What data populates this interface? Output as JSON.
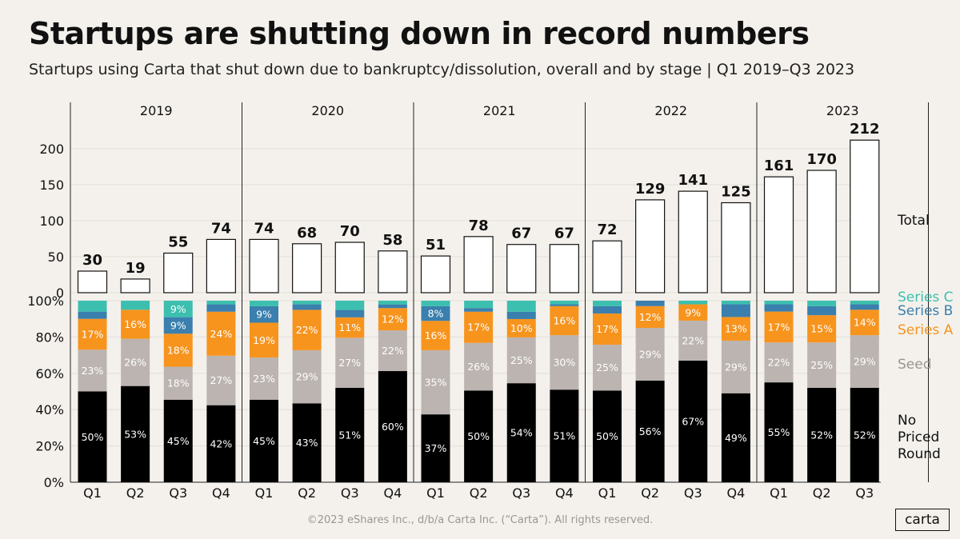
{
  "header": {
    "title": "Startups are shutting down in record numbers",
    "subtitle": "Startups using Carta that shut down due to bankruptcy/dissolution, overall and by stage | Q1 2019–Q3 2023"
  },
  "footer": {
    "copyright": "©2023 eShares Inc., d/b/a Carta Inc. (“Carta”). All rights reserved.",
    "logo": "carta"
  },
  "chart_data": [
    {
      "type": "bar",
      "panel": "total",
      "years": [
        "2019",
        "2020",
        "2021",
        "2022",
        "2023"
      ],
      "categories": [
        "Q1",
        "Q2",
        "Q3",
        "Q4",
        "Q1",
        "Q2",
        "Q3",
        "Q4",
        "Q1",
        "Q2",
        "Q3",
        "Q4",
        "Q1",
        "Q2",
        "Q3",
        "Q4",
        "Q1",
        "Q2",
        "Q3"
      ],
      "values": [
        30,
        19,
        55,
        74,
        74,
        68,
        70,
        58,
        51,
        78,
        67,
        67,
        72,
        129,
        141,
        125,
        161,
        170,
        212
      ],
      "ylim": [
        0,
        220
      ],
      "yticks": [
        "0",
        "50",
        "100",
        "150",
        "200"
      ],
      "legend_label": "Total"
    },
    {
      "type": "stacked-bar-100",
      "panel": "by-stage",
      "categories": [
        "Q1",
        "Q2",
        "Q3",
        "Q4",
        "Q1",
        "Q2",
        "Q3",
        "Q4",
        "Q1",
        "Q2",
        "Q3",
        "Q4",
        "Q1",
        "Q2",
        "Q3",
        "Q4",
        "Q1",
        "Q2",
        "Q3"
      ],
      "ylim": [
        0,
        100
      ],
      "yticks": [
        "0%",
        "20%",
        "40%",
        "60%",
        "80%",
        "100%"
      ],
      "series": [
        {
          "name": "No Priced Round",
          "color": "#000000",
          "label_color": "#ffffff",
          "values": [
            50,
            53,
            45,
            42,
            45,
            43,
            51,
            60,
            37,
            50,
            54,
            51,
            50,
            56,
            67,
            49,
            55,
            52,
            52
          ],
          "labels": [
            "50%",
            "53%",
            "45%",
            "42%",
            "45%",
            "43%",
            "51%",
            "60%",
            "37%",
            "50%",
            "54%",
            "51%",
            "50%",
            "56%",
            "67%",
            "49%",
            "55%",
            "52%",
            "52%"
          ]
        },
        {
          "name": "Seed",
          "color": "#bcb4b1",
          "label_color": "#ffffff",
          "values": [
            23,
            26,
            18,
            27,
            23,
            29,
            27,
            22,
            35,
            26,
            25,
            30,
            25,
            29,
            22,
            29,
            22,
            25,
            29
          ],
          "labels": [
            "23%",
            "26%",
            "18%",
            "27%",
            "23%",
            "29%",
            "27%",
            "22%",
            "35%",
            "26%",
            "25%",
            "30%",
            "25%",
            "29%",
            "22%",
            "29%",
            "22%",
            "25%",
            "29%"
          ]
        },
        {
          "name": "Series A",
          "color": "#f7941d",
          "label_color": "#ffffff",
          "values": [
            17,
            16,
            18,
            24,
            19,
            22,
            11,
            12,
            16,
            17,
            10,
            16,
            17,
            12,
            9,
            13,
            17,
            15,
            14
          ],
          "labels": [
            "17%",
            "16%",
            "18%",
            "24%",
            "19%",
            "22%",
            "11%",
            "12%",
            "16%",
            "17%",
            "10%",
            "16%",
            "17%",
            "12%",
            "9%",
            "13%",
            "17%",
            "15%",
            "14%"
          ]
        },
        {
          "name": "Series B",
          "color": "#3a7fad",
          "label_color": "#ffffff",
          "values": [
            4,
            0,
            9,
            4,
            9,
            3,
            4,
            2,
            8,
            2,
            4,
            1,
            4,
            3,
            0,
            7,
            4,
            5,
            3
          ],
          "labels": [
            "",
            "",
            "9%",
            "",
            "9%",
            "",
            "",
            "",
            "8%",
            "",
            "",
            "",
            "",
            "",
            "",
            "",
            "",
            "",
            ""
          ]
        },
        {
          "name": "Series C",
          "color": "#3cbfae",
          "label_color": "#ffffff",
          "values": [
            6,
            5,
            9,
            2,
            3,
            2,
            5,
            2,
            3,
            4,
            6,
            2,
            3,
            0,
            2,
            2,
            2,
            3,
            2
          ],
          "labels": [
            "",
            "",
            "9%",
            "",
            "",
            "",
            "",
            "",
            "",
            "",
            "",
            "",
            "",
            "",
            "",
            "",
            "",
            "",
            ""
          ]
        }
      ]
    }
  ]
}
